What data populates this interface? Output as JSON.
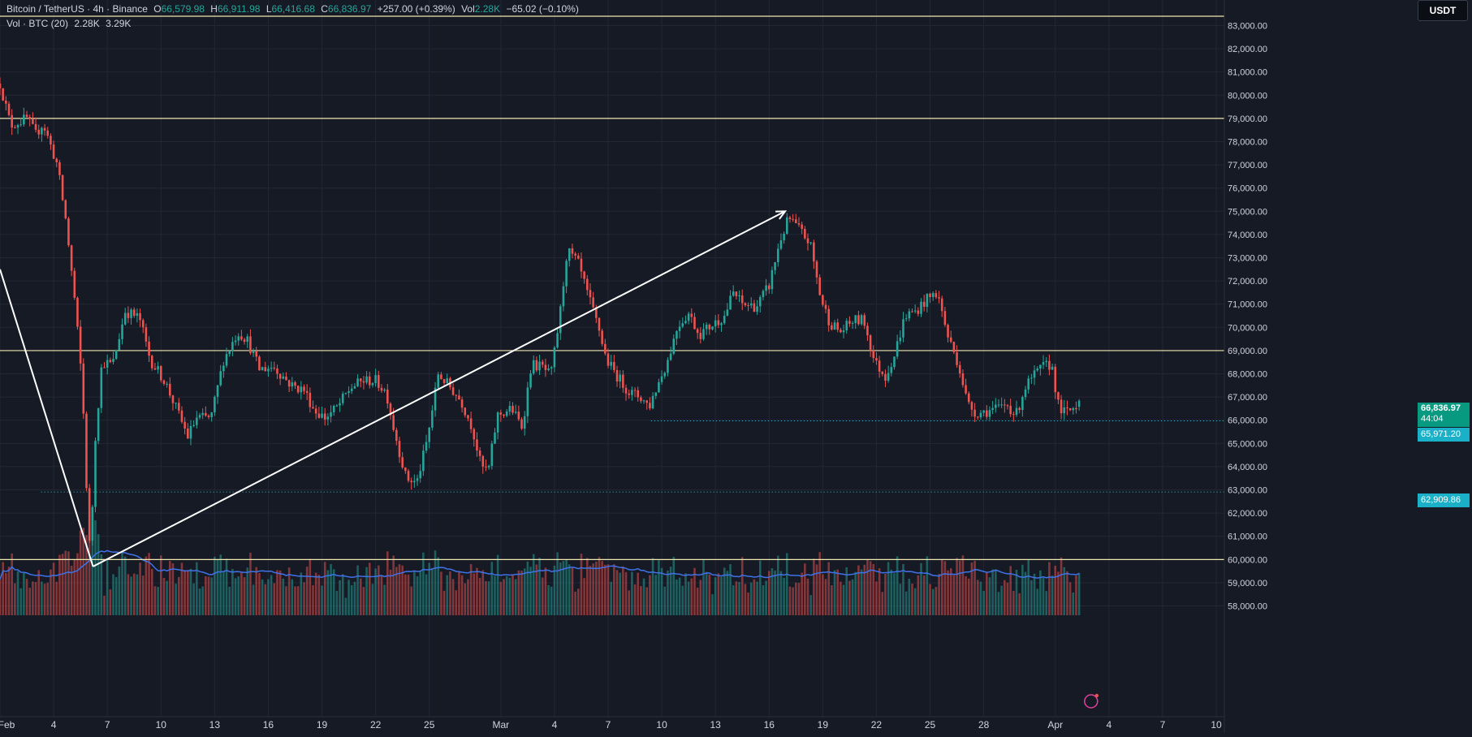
{
  "header": {
    "symbol": "Bitcoin / TetherUS · 4h · Binance",
    "o_label": "O",
    "o_value": "66,579.98",
    "h_label": "H",
    "h_value": "66,911.98",
    "l_label": "L",
    "l_value": "66,416.68",
    "c_label": "C",
    "c_value": "66,836.97",
    "change": "+257.00 (+0.39%)",
    "vol_label": "Vol",
    "vol_value": "2.28K",
    "vol_change": "−65.02 (−0.10%)",
    "vol_indicator": "Vol · BTC (20)",
    "vol_indicator_v1": "2.28K",
    "vol_indicator_v2": "3.29K"
  },
  "currency_button": "USDT",
  "price_tags": {
    "last_price": "66,836.97",
    "countdown": "44:04",
    "level_a": "65,971.20",
    "level_b": "62,909.86"
  },
  "colors": {
    "background": "#161a25",
    "up": "#26a69a",
    "down": "#ef5350",
    "hline": "#f0e6b0",
    "trend": "#ffffff",
    "vol_ma": "#3f72e8",
    "dotted": "#26c6da"
  },
  "chart_data": {
    "type": "candlestick",
    "y_axis_ticks": [
      58000,
      59000,
      60000,
      61000,
      62000,
      63000,
      64000,
      65000,
      66000,
      67000,
      68000,
      69000,
      70000,
      71000,
      72000,
      73000,
      74000,
      75000,
      76000,
      77000,
      78000,
      79000,
      80000,
      81000,
      82000,
      83000
    ],
    "y_tick_labels": [
      "58,000.00",
      "59,000.00",
      "60,000.00",
      "61,000.00",
      "62,000.00",
      "63,000.00",
      "64,000.00",
      "65,000.00",
      "66,000.00",
      "67,000.00",
      "68,000.00",
      "69,000.00",
      "70,000.00",
      "71,000.00",
      "72,000.00",
      "73,000.00",
      "74,000.00",
      "75,000.00",
      "76,000.00",
      "77,000.00",
      "78,000.00",
      "79,000.00",
      "80,000.00",
      "81,000.00",
      "82,000.00",
      "83,000.00"
    ],
    "ylim": [
      57600,
      84100
    ],
    "x_axis_labels": [
      {
        "day": 1,
        "label": "Feb"
      },
      {
        "day": 4,
        "label": "4"
      },
      {
        "day": 7,
        "label": "7"
      },
      {
        "day": 10,
        "label": "10"
      },
      {
        "day": 13,
        "label": "13"
      },
      {
        "day": 16,
        "label": "16"
      },
      {
        "day": 19,
        "label": "19"
      },
      {
        "day": 22,
        "label": "22"
      },
      {
        "day": 25,
        "label": "25"
      },
      {
        "day": 29,
        "label": "Mar"
      },
      {
        "day": 32,
        "label": "4"
      },
      {
        "day": 35,
        "label": "7"
      },
      {
        "day": 38,
        "label": "10"
      },
      {
        "day": 41,
        "label": "13"
      },
      {
        "day": 44,
        "label": "16"
      },
      {
        "day": 47,
        "label": "19"
      },
      {
        "day": 50,
        "label": "22"
      },
      {
        "day": 53,
        "label": "25"
      },
      {
        "day": 56,
        "label": "28"
      },
      {
        "day": 60,
        "label": "Apr"
      },
      {
        "day": 63,
        "label": "4"
      },
      {
        "day": 66,
        "label": "7"
      },
      {
        "day": 69,
        "label": "10"
      }
    ],
    "xlim": [
      1,
      69
    ],
    "price_path_keypoints": [
      [
        1.0,
        80500
      ],
      [
        1.6,
        78700
      ],
      [
        2.5,
        79000
      ],
      [
        3.0,
        78300
      ],
      [
        3.4,
        78800
      ],
      [
        4.2,
        77000
      ],
      [
        4.7,
        74500
      ],
      [
        5.2,
        71000
      ],
      [
        5.6,
        67500
      ],
      [
        5.9,
        62000
      ],
      [
        6.05,
        60000
      ],
      [
        6.3,
        65000
      ],
      [
        6.7,
        68500
      ],
      [
        7.3,
        68400
      ],
      [
        8.0,
        70700
      ],
      [
        8.8,
        70400
      ],
      [
        9.4,
        68600
      ],
      [
        10.2,
        67700
      ],
      [
        10.8,
        66600
      ],
      [
        11.5,
        65300
      ],
      [
        12.0,
        66100
      ],
      [
        12.8,
        66100
      ],
      [
        13.5,
        68600
      ],
      [
        14.3,
        69800
      ],
      [
        14.8,
        69500
      ],
      [
        15.5,
        68200
      ],
      [
        16.3,
        68300
      ],
      [
        17.3,
        67500
      ],
      [
        18.0,
        67300
      ],
      [
        18.6,
        66400
      ],
      [
        19.2,
        66100
      ],
      [
        19.9,
        66600
      ],
      [
        20.6,
        67400
      ],
      [
        21.3,
        67700
      ],
      [
        22.0,
        67700
      ],
      [
        22.6,
        67200
      ],
      [
        23.0,
        65700
      ],
      [
        23.7,
        63500
      ],
      [
        24.3,
        63300
      ],
      [
        24.9,
        65200
      ],
      [
        25.5,
        68000
      ],
      [
        26.2,
        67400
      ],
      [
        26.8,
        66800
      ],
      [
        27.4,
        65700
      ],
      [
        27.9,
        64000
      ],
      [
        28.3,
        63800
      ],
      [
        28.8,
        66200
      ],
      [
        29.6,
        66500
      ],
      [
        30.2,
        65700
      ],
      [
        30.7,
        68400
      ],
      [
        31.3,
        68300
      ],
      [
        31.8,
        67900
      ],
      [
        32.3,
        70500
      ],
      [
        32.7,
        73300
      ],
      [
        33.3,
        72800
      ],
      [
        33.9,
        71300
      ],
      [
        34.5,
        69900
      ],
      [
        34.9,
        68600
      ],
      [
        35.6,
        67800
      ],
      [
        36.2,
        67200
      ],
      [
        36.8,
        67000
      ],
      [
        37.3,
        66600
      ],
      [
        37.7,
        67400
      ],
      [
        38.3,
        68500
      ],
      [
        38.9,
        70100
      ],
      [
        39.5,
        70600
      ],
      [
        40.1,
        69700
      ],
      [
        40.8,
        70100
      ],
      [
        41.5,
        70500
      ],
      [
        42.0,
        71500
      ],
      [
        42.5,
        71000
      ],
      [
        43.3,
        70900
      ],
      [
        44.0,
        71800
      ],
      [
        44.6,
        73700
      ],
      [
        45.1,
        74700
      ],
      [
        45.7,
        74200
      ],
      [
        46.3,
        73600
      ],
      [
        46.9,
        71200
      ],
      [
        47.4,
        70200
      ],
      [
        48.0,
        69800
      ],
      [
        48.7,
        70300
      ],
      [
        49.3,
        70300
      ],
      [
        49.9,
        68500
      ],
      [
        50.5,
        67900
      ],
      [
        51.0,
        68800
      ],
      [
        51.6,
        70500
      ],
      [
        52.2,
        70700
      ],
      [
        52.8,
        71200
      ],
      [
        53.4,
        71500
      ],
      [
        54.0,
        69600
      ],
      [
        54.6,
        68400
      ],
      [
        55.1,
        66700
      ],
      [
        55.6,
        66300
      ],
      [
        56.2,
        66400
      ],
      [
        56.8,
        66500
      ],
      [
        57.3,
        66700
      ],
      [
        57.8,
        66200
      ],
      [
        58.3,
        67400
      ],
      [
        58.8,
        67900
      ],
      [
        59.3,
        68300
      ],
      [
        59.8,
        68400
      ],
      [
        60.2,
        66500
      ],
      [
        60.6,
        66300
      ],
      [
        61.1,
        66600
      ],
      [
        61.4,
        66837
      ]
    ],
    "horizontal_lines": [
      83400,
      79000,
      69000,
      60000
    ],
    "dotted_levels": [
      {
        "price": 65971.2,
        "from_day": 37.4
      },
      {
        "price": 62909.86,
        "from_day": 3.3
      }
    ],
    "trend_lines": [
      {
        "from": [
          1.0,
          72500
        ],
        "to": [
          6.2,
          59700
        ]
      },
      {
        "from": [
          6.2,
          59700
        ],
        "to": [
          44.9,
          75000
        ]
      }
    ],
    "volume_scale": {
      "max_height_fraction": 0.13
    }
  }
}
